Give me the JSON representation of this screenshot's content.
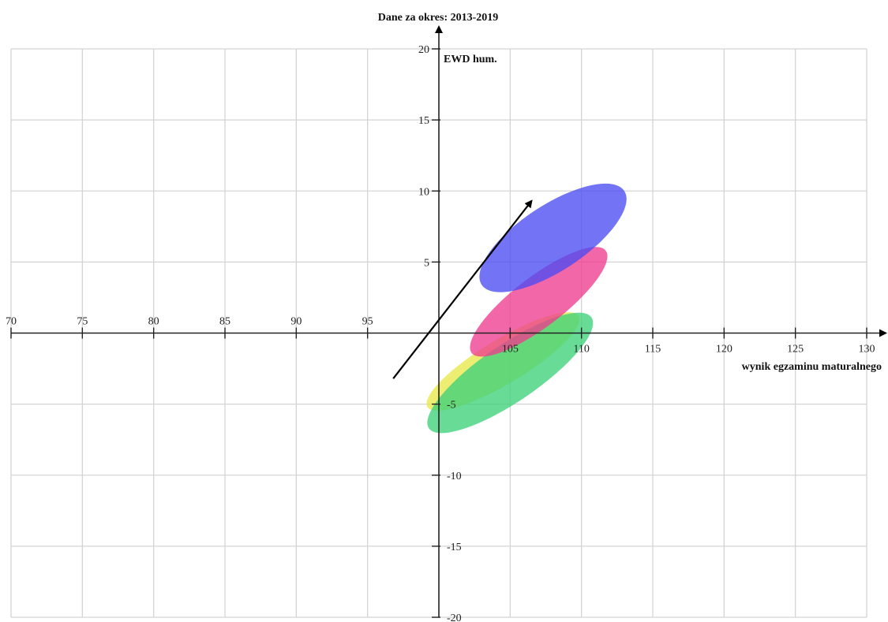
{
  "chart_data": {
    "type": "scatter",
    "title": "Dane za okres: 2013-2019",
    "xlabel": "wynik egzaminu maturalnego",
    "ylabel": "EWD hum.",
    "xlim": [
      70,
      130
    ],
    "ylim": [
      -20,
      20
    ],
    "x_ticks": [
      70,
      75,
      80,
      85,
      90,
      95,
      105,
      110,
      115,
      120,
      125,
      130
    ],
    "y_ticks": [
      20,
      15,
      10,
      5,
      -5,
      -10,
      -15,
      -20
    ],
    "grid": true,
    "series": [
      {
        "color": "#e8e84a",
        "center": [
          104.5,
          -2.0
        ],
        "ends": [
          [
            99.2,
            -5.2
          ],
          [
            109.8,
            1.2
          ]
        ],
        "minor_halfwidth": 1.55
      },
      {
        "color": "#3dd17a",
        "center": [
          105.0,
          -2.8
        ],
        "ends": [
          [
            99.3,
            -6.7
          ],
          [
            110.7,
            1.1
          ]
        ],
        "minor_halfwidth": 2.0
      },
      {
        "color": "#ee3c8e",
        "center": [
          107.0,
          2.2
        ],
        "ends": [
          [
            102.3,
            -1.4
          ],
          [
            111.7,
            5.8
          ]
        ],
        "minor_halfwidth": 1.75
      },
      {
        "color": "#4b4bf2",
        "center": [
          108.0,
          6.7
        ],
        "ends": [
          [
            103.0,
            3.4
          ],
          [
            113.0,
            10.0
          ]
        ],
        "minor_halfwidth": 2.3
      }
    ],
    "arrow": {
      "from": [
        96.8,
        -3.2
      ],
      "to": [
        106.5,
        9.3
      ]
    }
  }
}
